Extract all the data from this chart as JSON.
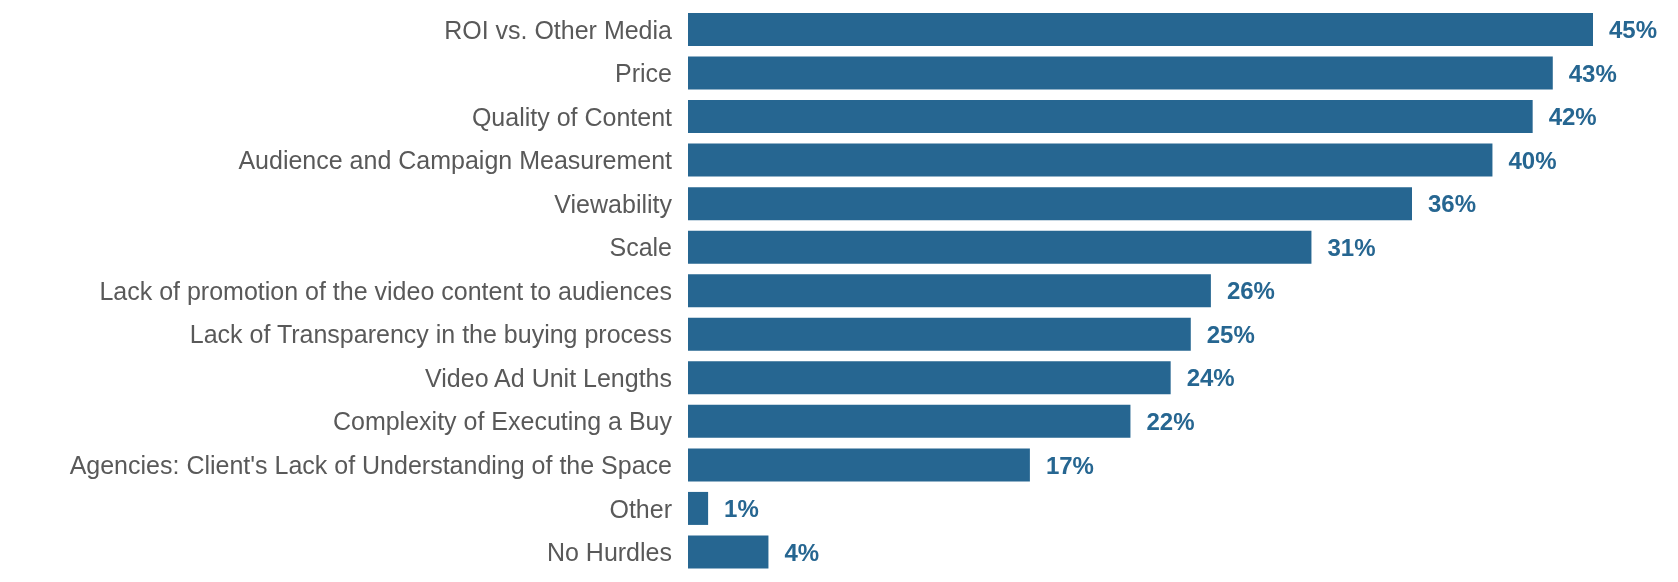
{
  "chart_data": {
    "type": "bar",
    "orientation": "horizontal",
    "categories": [
      "ROI vs. Other Media",
      "Price",
      "Quality of Content",
      "Audience and Campaign Measurement",
      "Viewability",
      "Scale",
      "Lack of promotion of the video content to audiences",
      "Lack of Transparency in the buying process",
      "Video Ad Unit Lengths",
      "Complexity of Executing a Buy",
      "Agencies: Client's Lack of Understanding of the Space",
      "Other",
      "No Hurdles"
    ],
    "values": [
      45,
      43,
      42,
      40,
      36,
      31,
      26,
      25,
      24,
      22,
      17,
      1,
      4
    ],
    "value_labels": [
      "45%",
      "43%",
      "42%",
      "40%",
      "36%",
      "31%",
      "26%",
      "25%",
      "24%",
      "22%",
      "17%",
      "1%",
      "4%"
    ],
    "color": "#266691",
    "grid": false,
    "legend": false
  }
}
